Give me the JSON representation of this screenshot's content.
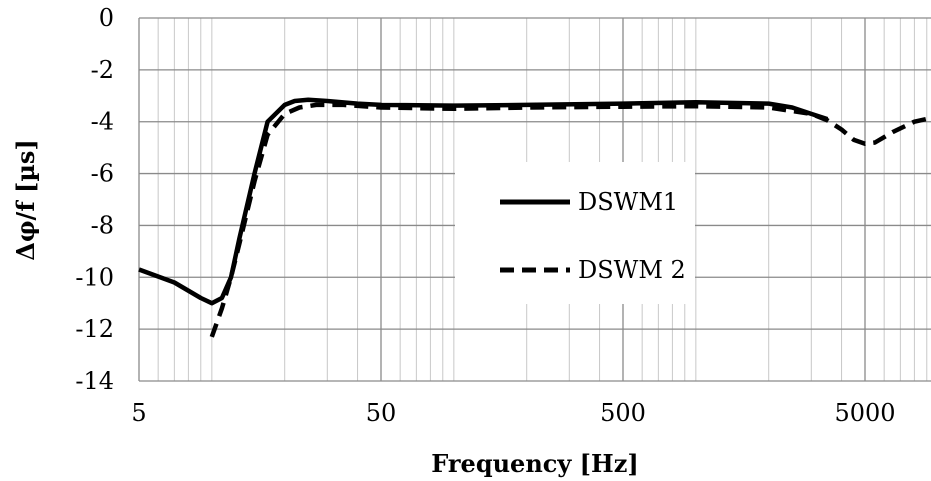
{
  "chart_data": {
    "type": "line",
    "xlabel": "Frequency [Hz]",
    "ylabel": "Δφ/f [µs]",
    "x_scale": "log",
    "xlim": [
      5,
      10000
    ],
    "ylim": [
      -14,
      0
    ],
    "x_ticks": [
      5,
      50,
      500,
      5000
    ],
    "x_tick_labels": [
      "5",
      "50",
      "500",
      "5000"
    ],
    "y_ticks": [
      0,
      -2,
      -4,
      -6,
      -8,
      -10,
      -12,
      -14
    ],
    "y_tick_labels": [
      "0",
      "-2",
      "-4",
      "-6",
      "-8",
      "-10",
      "-12",
      "-14"
    ],
    "grid": true,
    "legend_position": "center-right",
    "series": [
      {
        "name": "DSWM1",
        "style": "solid",
        "color": "#000000",
        "points": [
          [
            5,
            -9.7
          ],
          [
            7,
            -10.2
          ],
          [
            9,
            -10.8
          ],
          [
            10,
            -11.0
          ],
          [
            11,
            -10.8
          ],
          [
            12,
            -10.0
          ],
          [
            13,
            -8.5
          ],
          [
            15,
            -6.0
          ],
          [
            17,
            -4.0
          ],
          [
            20,
            -3.35
          ],
          [
            22,
            -3.2
          ],
          [
            25,
            -3.15
          ],
          [
            30,
            -3.2
          ],
          [
            40,
            -3.3
          ],
          [
            50,
            -3.35
          ],
          [
            100,
            -3.38
          ],
          [
            200,
            -3.35
          ],
          [
            500,
            -3.3
          ],
          [
            1000,
            -3.25
          ],
          [
            2000,
            -3.3
          ],
          [
            2500,
            -3.45
          ],
          [
            3000,
            -3.7
          ],
          [
            3500,
            -3.9
          ]
        ]
      },
      {
        "name": "DSWM 2",
        "style": "dashed",
        "color": "#000000",
        "points": [
          [
            10,
            -12.3
          ],
          [
            11,
            -11.2
          ],
          [
            12,
            -10.0
          ],
          [
            13,
            -8.7
          ],
          [
            15,
            -6.3
          ],
          [
            17,
            -4.5
          ],
          [
            20,
            -3.7
          ],
          [
            23,
            -3.45
          ],
          [
            27,
            -3.35
          ],
          [
            35,
            -3.35
          ],
          [
            50,
            -3.45
          ],
          [
            100,
            -3.5
          ],
          [
            200,
            -3.45
          ],
          [
            500,
            -3.42
          ],
          [
            1000,
            -3.4
          ],
          [
            2000,
            -3.45
          ],
          [
            3000,
            -3.7
          ],
          [
            3500,
            -3.95
          ],
          [
            4000,
            -4.3
          ],
          [
            4500,
            -4.7
          ],
          [
            5000,
            -4.85
          ],
          [
            5500,
            -4.8
          ],
          [
            6500,
            -4.4
          ],
          [
            8000,
            -4.0
          ],
          [
            10000,
            -3.8
          ]
        ]
      }
    ]
  }
}
